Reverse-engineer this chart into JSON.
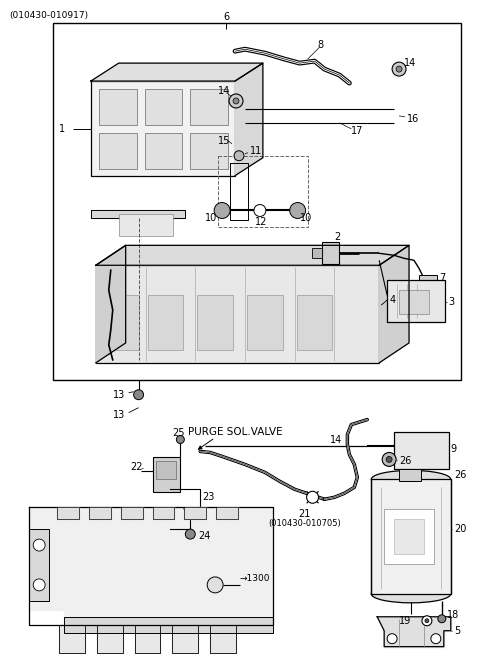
{
  "bg_color": "#ffffff",
  "line_color": "#000000",
  "header_text": "(010430-010917)",
  "purge_label": "PURGE SOL.VALVE",
  "sub_label": "(010430-010705)",
  "label_font_size": 7,
  "small_font_size": 6
}
